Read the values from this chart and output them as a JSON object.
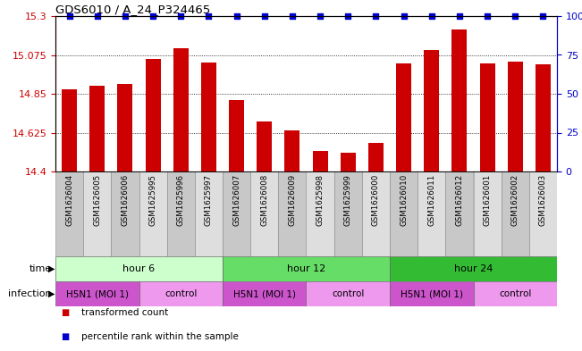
{
  "title": "GDS6010 / A_24_P324465",
  "samples": [
    "GSM1626004",
    "GSM1626005",
    "GSM1626006",
    "GSM1625995",
    "GSM1625996",
    "GSM1625997",
    "GSM1626007",
    "GSM1626008",
    "GSM1626009",
    "GSM1625998",
    "GSM1625999",
    "GSM1626000",
    "GSM1626010",
    "GSM1626011",
    "GSM1626012",
    "GSM1626001",
    "GSM1626002",
    "GSM1626003"
  ],
  "bar_values": [
    14.875,
    14.895,
    14.905,
    15.05,
    15.115,
    15.03,
    14.815,
    14.69,
    14.64,
    14.52,
    14.51,
    14.565,
    15.025,
    15.105,
    15.22,
    15.025,
    15.035,
    15.02
  ],
  "ymin": 14.4,
  "ymax": 15.3,
  "yticks": [
    14.4,
    14.625,
    14.85,
    15.075,
    15.3
  ],
  "right_yticks": [
    0,
    25,
    50,
    75,
    100
  ],
  "bar_color": "#cc0000",
  "dot_color": "#0000cc",
  "time_groups": [
    {
      "label": "hour 6",
      "start": 0,
      "end": 6,
      "color": "#ccffcc"
    },
    {
      "label": "hour 12",
      "start": 6,
      "end": 12,
      "color": "#66dd66"
    },
    {
      "label": "hour 24",
      "start": 12,
      "end": 18,
      "color": "#33bb33"
    }
  ],
  "infection_groups": [
    {
      "label": "H5N1 (MOI 1)",
      "start": 0,
      "end": 3,
      "color": "#cc55cc"
    },
    {
      "label": "control",
      "start": 3,
      "end": 6,
      "color": "#ee99ee"
    },
    {
      "label": "H5N1 (MOI 1)",
      "start": 6,
      "end": 9,
      "color": "#cc55cc"
    },
    {
      "label": "control",
      "start": 9,
      "end": 12,
      "color": "#ee99ee"
    },
    {
      "label": "H5N1 (MOI 1)",
      "start": 12,
      "end": 15,
      "color": "#cc55cc"
    },
    {
      "label": "control",
      "start": 15,
      "end": 18,
      "color": "#ee99ee"
    }
  ],
  "legend_items": [
    {
      "label": "transformed count",
      "color": "#cc0000"
    },
    {
      "label": "percentile rank within the sample",
      "color": "#0000cc"
    }
  ],
  "bar_color_label": "#cc0000",
  "right_color": "#0000cc",
  "fig_w": 6.51,
  "fig_h": 3.93,
  "dpi": 100
}
